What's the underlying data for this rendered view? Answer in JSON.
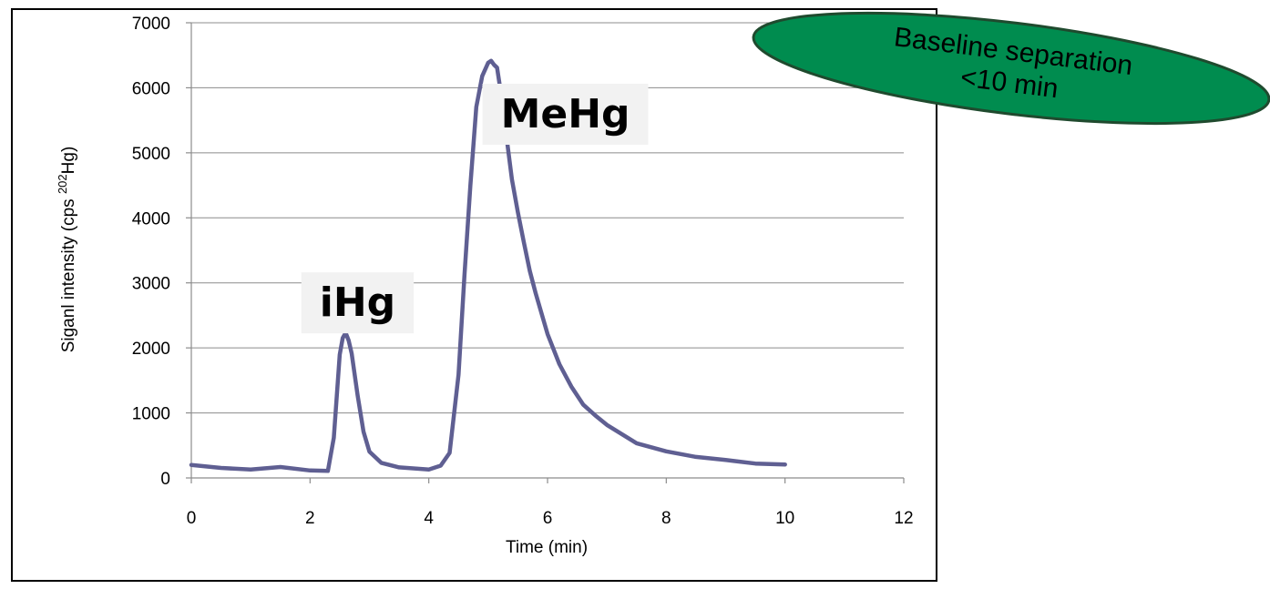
{
  "chart_data": {
    "type": "line",
    "title": "",
    "xlabel": "Time (min)",
    "ylabel_main": "Siganl intensity (cps ",
    "ylabel_sup": "202",
    "ylabel_end": "Hg)",
    "xlim": [
      0,
      12
    ],
    "ylim": [
      0,
      7000
    ],
    "xticks": [
      0,
      2,
      4,
      6,
      8,
      10,
      12
    ],
    "yticks": [
      0,
      1000,
      2000,
      3000,
      4000,
      5000,
      6000,
      7000
    ],
    "grid": "horizontal",
    "legend": "none",
    "line_color": "#5F5F92",
    "series": [
      {
        "x": [
          0,
          0.5,
          1.0,
          1.5,
          2.0,
          2.3,
          2.4,
          2.5,
          2.55,
          2.6,
          2.65,
          2.7,
          2.8,
          2.9,
          3.0,
          3.2,
          3.5,
          4.0,
          4.2,
          4.35,
          4.5,
          4.6,
          4.7,
          4.8,
          4.9,
          5.0,
          5.05,
          5.1,
          5.15,
          5.2,
          5.3,
          5.4,
          5.5,
          5.6,
          5.7,
          5.8,
          6.0,
          6.2,
          6.4,
          6.6,
          6.8,
          7.0,
          7.5,
          8.0,
          8.5,
          9.0,
          9.5,
          10.0
        ],
        "y": [
          200,
          160,
          140,
          140,
          130,
          120,
          600,
          1900,
          2150,
          2250,
          2100,
          1900,
          1300,
          700,
          400,
          230,
          170,
          140,
          160,
          400,
          1600,
          3100,
          4500,
          5700,
          6200,
          6370,
          6400,
          6380,
          6300,
          6000,
          5300,
          4600,
          4100,
          3600,
          3200,
          2850,
          2200,
          1750,
          1400,
          1150,
          950,
          800,
          560,
          400,
          320,
          270,
          230,
          220
        ]
      }
    ],
    "annotations": [
      {
        "text": "iHg",
        "x": 2.8,
        "y": 2700
      },
      {
        "text": "MeHg",
        "x": 6.3,
        "y": 5600
      }
    ]
  },
  "callout": {
    "line1": "Baseline separation",
    "line2": "<10 min",
    "fill": "#008C4F",
    "stroke": "#1F4A2E"
  }
}
